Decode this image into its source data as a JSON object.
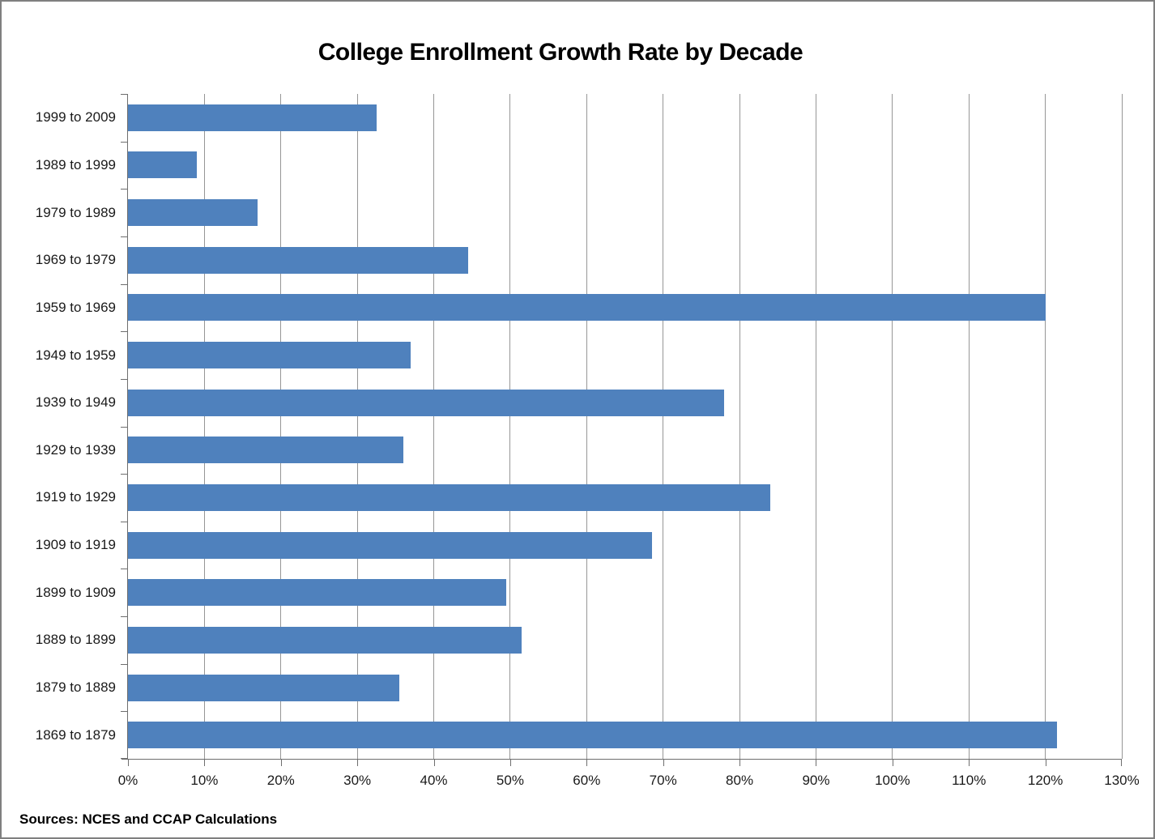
{
  "page": {
    "background": "#ffffff",
    "border_color": "#7f7f7f"
  },
  "chart_data": {
    "type": "bar",
    "orientation": "horizontal",
    "title": "College Enrollment Growth Rate by Decade",
    "categories": [
      "1999 to 2009",
      "1989 to 1999",
      "1979 to 1989",
      "1969 to 1979",
      "1959 to 1969",
      "1949 to 1959",
      "1939 to 1949",
      "1929 to 1939",
      "1919 to 1929",
      "1909 to 1919",
      "1899 to 1909",
      "1889 to 1899",
      "1879 to 1889",
      "1869 to 1879"
    ],
    "values": [
      32.5,
      9,
      17,
      44.5,
      120,
      37,
      78,
      36,
      84,
      68.5,
      49.5,
      51.5,
      35.5,
      121.5
    ],
    "value_unit": "%",
    "xlabel": "",
    "ylabel": "",
    "xlim": [
      0,
      130
    ],
    "x_tick_interval": 10,
    "x_tick_labels": [
      "0%",
      "10%",
      "20%",
      "30%",
      "40%",
      "50%",
      "60%",
      "70%",
      "80%",
      "90%",
      "100%",
      "110%",
      "120%",
      "130%"
    ],
    "grid": "vertical-only",
    "legend": "none",
    "bar_color": "#4F81BD",
    "gridline_color": "#969696",
    "axis_color": "#6e6e6e",
    "source_note": "Sources: NCES and CCAP Calculations"
  }
}
